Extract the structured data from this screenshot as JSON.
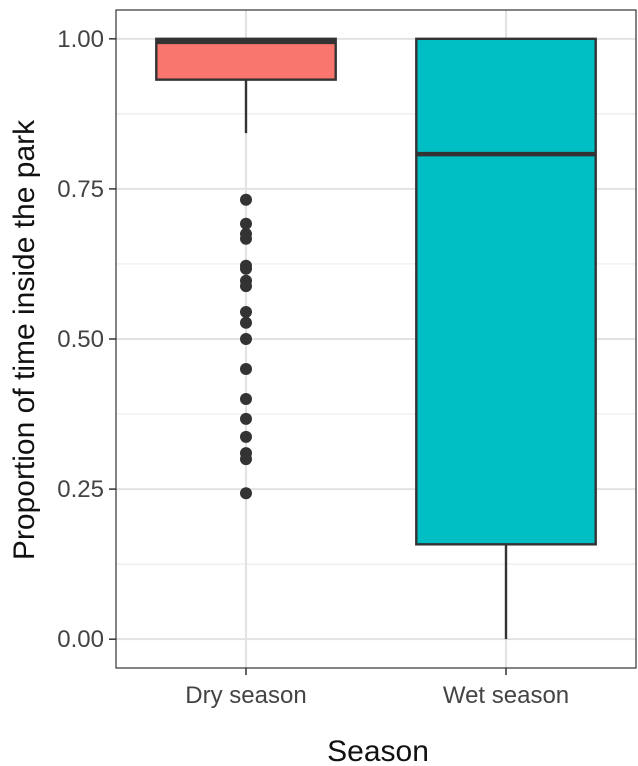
{
  "chart_data": {
    "type": "boxplot",
    "xlabel": "Season",
    "ylabel": "Proportion of time inside the park",
    "ylim": [
      -0.048,
      1.048
    ],
    "y_ticks": [
      "0.00",
      "0.25",
      "0.50",
      "0.75",
      "1.00"
    ],
    "y_tick_values": [
      0,
      0.25,
      0.5,
      0.75,
      1.0
    ],
    "grid": true,
    "legend": "none",
    "categories": [
      "Dry season",
      "Wet season"
    ],
    "boxes": [
      {
        "category": "Dry season",
        "color": "#F8766D",
        "whisker_low": 0.843,
        "q1": 0.932,
        "median": 0.995,
        "q3": 1.0,
        "whisker_high": 1.0,
        "outliers": [
          0.732,
          0.692,
          0.675,
          0.667,
          0.622,
          0.617,
          0.597,
          0.588,
          0.545,
          0.527,
          0.5,
          0.45,
          0.4,
          0.367,
          0.337,
          0.31,
          0.3,
          0.243
        ]
      },
      {
        "category": "Wet season",
        "color": "#00BFC4",
        "whisker_low": 0.0,
        "q1": 0.158,
        "median": 0.808,
        "q3": 1.0,
        "whisker_high": 1.0,
        "outliers": []
      }
    ]
  }
}
